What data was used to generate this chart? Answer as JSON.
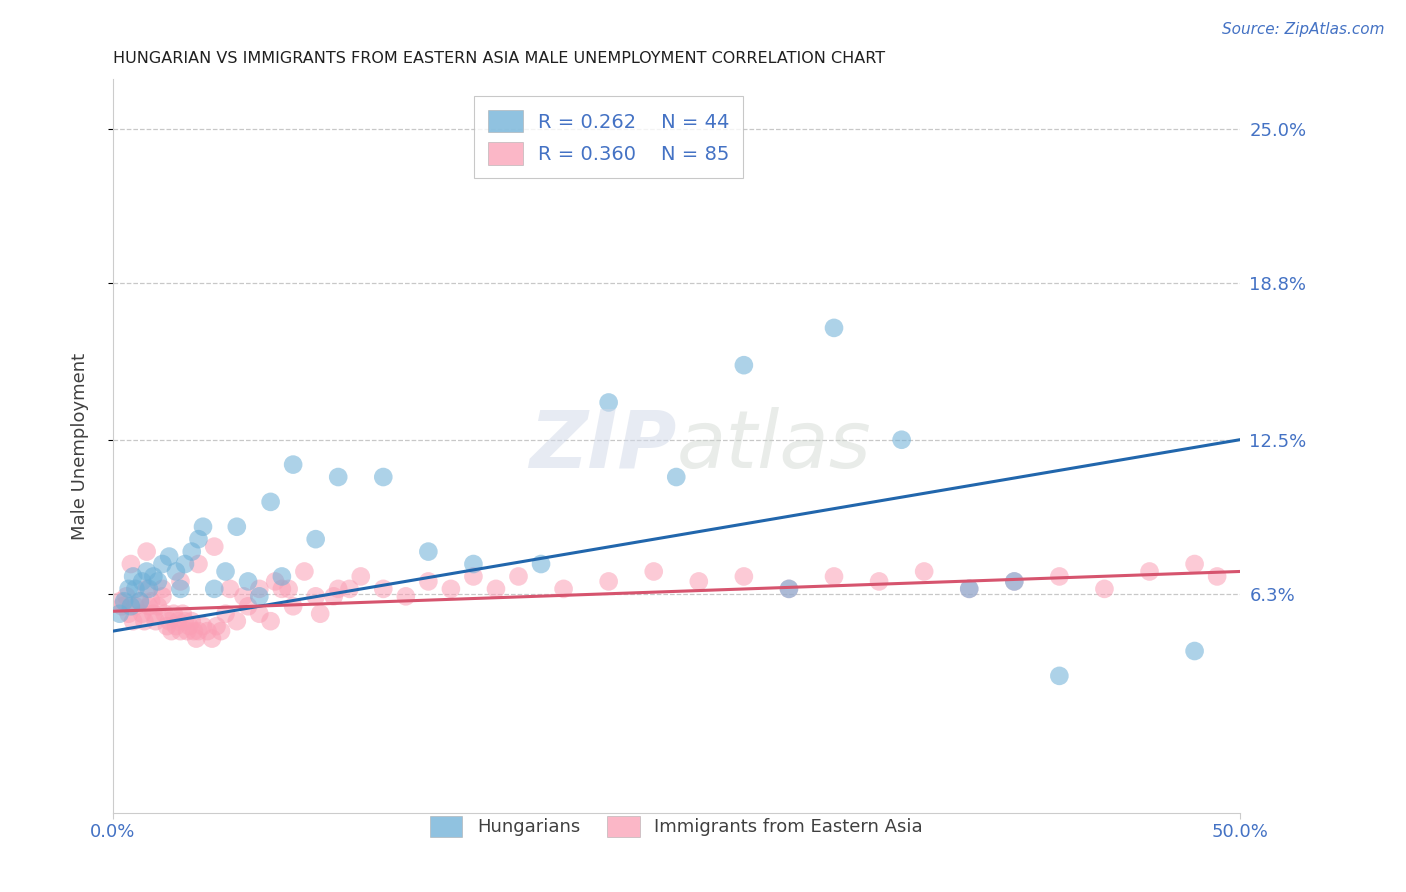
{
  "title": "HUNGARIAN VS IMMIGRANTS FROM EASTERN ASIA MALE UNEMPLOYMENT CORRELATION CHART",
  "source": "Source: ZipAtlas.com",
  "ylabel": "Male Unemployment",
  "xlim": [
    0.0,
    0.5
  ],
  "ylim": [
    -0.025,
    0.27
  ],
  "yticks": [
    0.063,
    0.125,
    0.188,
    0.25
  ],
  "ytick_labels": [
    "6.3%",
    "12.5%",
    "18.8%",
    "25.0%"
  ],
  "xtick_labels": [
    "0.0%",
    "50.0%"
  ],
  "xtick_positions": [
    0.0,
    0.5
  ],
  "legend_r1": "R = 0.262",
  "legend_n1": "N = 44",
  "legend_r2": "R = 0.360",
  "legend_n2": "N = 85",
  "legend_label1": "Hungarians",
  "legend_label2": "Immigrants from Eastern Asia",
  "blue_color": "#6baed6",
  "pink_color": "#fa9fb5",
  "line_blue": "#2166ac",
  "line_pink": "#d6546e",
  "tick_color": "#4472c4",
  "axis_label_color": "#404040",
  "title_color": "#202020",
  "blue_line_start_y": 0.048,
  "blue_line_end_y": 0.125,
  "pink_line_start_y": 0.056,
  "pink_line_end_y": 0.072,
  "blue_x": [
    0.003,
    0.005,
    0.007,
    0.008,
    0.009,
    0.01,
    0.012,
    0.013,
    0.015,
    0.016,
    0.018,
    0.02,
    0.022,
    0.025,
    0.028,
    0.03,
    0.032,
    0.035,
    0.038,
    0.04,
    0.045,
    0.05,
    0.055,
    0.06,
    0.065,
    0.07,
    0.075,
    0.08,
    0.09,
    0.1,
    0.12,
    0.14,
    0.16,
    0.19,
    0.22,
    0.25,
    0.28,
    0.3,
    0.32,
    0.35,
    0.38,
    0.4,
    0.42,
    0.48
  ],
  "blue_y": [
    0.055,
    0.06,
    0.065,
    0.058,
    0.07,
    0.065,
    0.06,
    0.068,
    0.072,
    0.065,
    0.07,
    0.068,
    0.075,
    0.078,
    0.072,
    0.065,
    0.075,
    0.08,
    0.085,
    0.09,
    0.065,
    0.072,
    0.09,
    0.068,
    0.062,
    0.1,
    0.07,
    0.115,
    0.085,
    0.11,
    0.11,
    0.08,
    0.075,
    0.075,
    0.14,
    0.11,
    0.155,
    0.065,
    0.17,
    0.125,
    0.065,
    0.068,
    0.03,
    0.04
  ],
  "pink_x": [
    0.003,
    0.004,
    0.006,
    0.007,
    0.009,
    0.01,
    0.012,
    0.013,
    0.014,
    0.015,
    0.016,
    0.017,
    0.018,
    0.019,
    0.02,
    0.022,
    0.023,
    0.024,
    0.025,
    0.026,
    0.027,
    0.028,
    0.029,
    0.03,
    0.031,
    0.032,
    0.033,
    0.034,
    0.035,
    0.036,
    0.037,
    0.038,
    0.04,
    0.042,
    0.044,
    0.046,
    0.048,
    0.05,
    0.055,
    0.06,
    0.065,
    0.07,
    0.075,
    0.08,
    0.09,
    0.1,
    0.11,
    0.12,
    0.13,
    0.14,
    0.15,
    0.16,
    0.17,
    0.18,
    0.2,
    0.22,
    0.24,
    0.26,
    0.28,
    0.3,
    0.32,
    0.34,
    0.36,
    0.38,
    0.4,
    0.42,
    0.44,
    0.46,
    0.48,
    0.49,
    0.008,
    0.015,
    0.022,
    0.03,
    0.038,
    0.045,
    0.052,
    0.058,
    0.065,
    0.072,
    0.078,
    0.085,
    0.092,
    0.098,
    0.105
  ],
  "pink_y": [
    0.06,
    0.058,
    0.062,
    0.055,
    0.052,
    0.058,
    0.06,
    0.055,
    0.052,
    0.065,
    0.058,
    0.06,
    0.055,
    0.052,
    0.058,
    0.062,
    0.055,
    0.05,
    0.052,
    0.048,
    0.055,
    0.05,
    0.052,
    0.048,
    0.055,
    0.052,
    0.048,
    0.05,
    0.052,
    0.048,
    0.045,
    0.048,
    0.05,
    0.048,
    0.045,
    0.05,
    0.048,
    0.055,
    0.052,
    0.058,
    0.055,
    0.052,
    0.065,
    0.058,
    0.062,
    0.065,
    0.07,
    0.065,
    0.062,
    0.068,
    0.065,
    0.07,
    0.065,
    0.07,
    0.065,
    0.068,
    0.072,
    0.068,
    0.07,
    0.065,
    0.07,
    0.068,
    0.072,
    0.065,
    0.068,
    0.07,
    0.065,
    0.072,
    0.075,
    0.07,
    0.075,
    0.08,
    0.065,
    0.068,
    0.075,
    0.082,
    0.065,
    0.062,
    0.065,
    0.068,
    0.065,
    0.072,
    0.055,
    0.062,
    0.065
  ]
}
